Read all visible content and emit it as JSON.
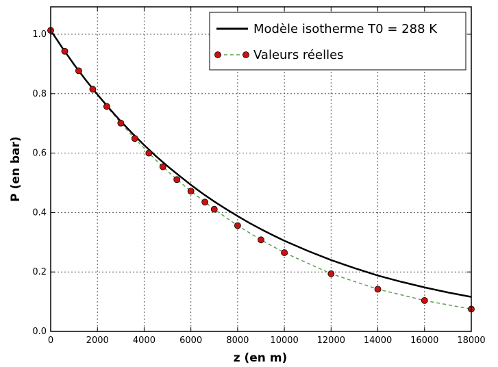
{
  "chart_data": {
    "type": "line",
    "title": "",
    "xlabel": "z (en m)",
    "ylabel": "P (en bar)",
    "xlim": [
      0,
      18000
    ],
    "ylim": [
      0.0,
      1.1
    ],
    "grid": true,
    "legend_position": "top-right",
    "x_ticks": [
      0,
      2000,
      4000,
      6000,
      8000,
      10000,
      12000,
      14000,
      16000,
      18000
    ],
    "x_tick_labels": [
      "0",
      "2000",
      "4000",
      "6000",
      "8000",
      "10000",
      "12000",
      "14000",
      "16000",
      "18000"
    ],
    "y_ticks": [
      0.0,
      0.2,
      0.4,
      0.6,
      0.8,
      1.0
    ],
    "y_tick_labels": [
      "0.0",
      "0.2",
      "0.4",
      "0.6",
      "0.8",
      "1.0"
    ],
    "series": [
      {
        "name": "Modèle isotherme T0 = 288 K",
        "kind": "line",
        "color": "#000000",
        "x": [
          0,
          500,
          1000,
          1500,
          2000,
          2500,
          3000,
          3500,
          4000,
          4500,
          5000,
          5500,
          6000,
          6500,
          7000,
          7500,
          8000,
          8500,
          9000,
          9500,
          10000,
          11000,
          12000,
          13000,
          14000,
          15000,
          16000,
          17000,
          18000
        ],
        "y": [
          1.013,
          0.954,
          0.898,
          0.846,
          0.797,
          0.751,
          0.707,
          0.666,
          0.627,
          0.59,
          0.556,
          0.524,
          0.493,
          0.464,
          0.437,
          0.412,
          0.388,
          0.365,
          0.344,
          0.324,
          0.305,
          0.271,
          0.24,
          0.213,
          0.188,
          0.167,
          0.148,
          0.131,
          0.116
        ]
      },
      {
        "name": "Valeurs réelles",
        "kind": "dashed-markers",
        "color": "#5a9e4f",
        "marker_color": "#cc1111",
        "x": [
          0,
          600,
          1200,
          1800,
          2400,
          3000,
          3600,
          4200,
          4800,
          5400,
          6000,
          6600,
          7000,
          8000,
          9000,
          10000,
          12000,
          14000,
          16000,
          18000
        ],
        "y": [
          1.013,
          0.943,
          0.877,
          0.815,
          0.757,
          0.701,
          0.649,
          0.6,
          0.554,
          0.511,
          0.472,
          0.435,
          0.411,
          0.356,
          0.308,
          0.265,
          0.194,
          0.142,
          0.104,
          0.075
        ]
      }
    ]
  }
}
